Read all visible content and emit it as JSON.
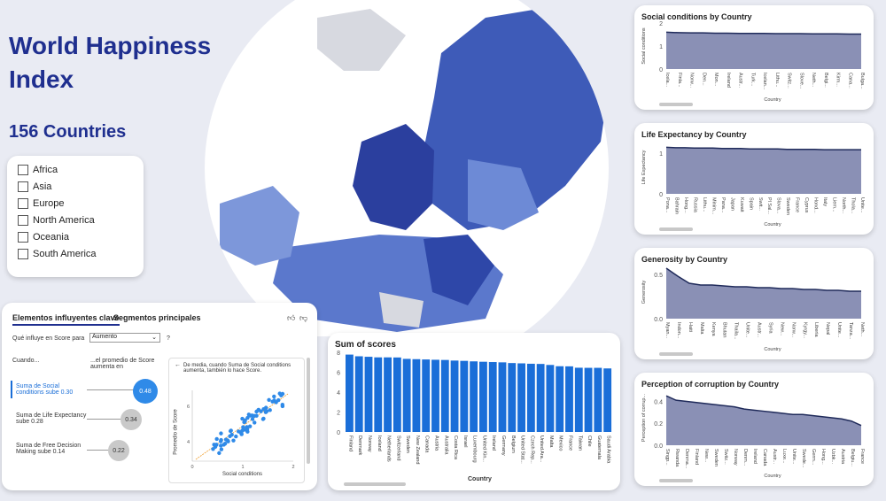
{
  "title": "World Happiness Index",
  "countries_label": "156 Countries",
  "slicer": {
    "items": [
      "Africa",
      "Asia",
      "Europe",
      "North America",
      "Oceania",
      "South America"
    ]
  },
  "colors": {
    "accent": "#1f2f8f",
    "bar": "#1a6ed8",
    "area_fill": "#8a90b5",
    "area_line": "#1f2a5a",
    "map_ocean": "#ffffff",
    "map_land": "#3e5bb8"
  },
  "globe_icon": "globe-map-icon",
  "mini_charts": [
    {
      "title": "Social conditions by Country",
      "xlabel": "Country",
      "ylabel": "Social conditions",
      "ticks": [
        "2",
        "1",
        "0"
      ],
      "categories": [
        "Icela...",
        "Finla...",
        "Norw...",
        "Den...",
        "Mon...",
        "Ireland",
        "Austr...",
        "Turk...",
        "Icelan...",
        "Lithu...",
        "Switz...",
        "Slove...",
        "Neth...",
        "Belgi...",
        "Kirm...",
        "Cana...",
        "Bulga..."
      ],
      "values": [
        1.6,
        1.58,
        1.57,
        1.57,
        1.56,
        1.56,
        1.55,
        1.55,
        1.55,
        1.54,
        1.54,
        1.54,
        1.53,
        1.53,
        1.53,
        1.52,
        1.52
      ],
      "ylim": [
        0,
        2
      ]
    },
    {
      "title": "Life Expectancy by Country",
      "xlabel": "Country",
      "ylabel": "Life Expectancy",
      "ticks": [
        "1",
        "0"
      ],
      "categories": [
        "Pona...",
        "Bahrain",
        "Hong...",
        "Russia",
        "Lithu...",
        "Minim...",
        "Pana...",
        "Japan",
        "Kuwait",
        "Spain",
        "Swit...",
        "Pl Sal...",
        "Slova...",
        "Sweden",
        "France",
        "Cyprus",
        "Hond...",
        "Italy",
        "Liem...",
        "North...",
        "Thola...",
        "Unite..."
      ],
      "values": [
        1.14,
        1.13,
        1.13,
        1.12,
        1.12,
        1.12,
        1.11,
        1.11,
        1.11,
        1.1,
        1.1,
        1.1,
        1.1,
        1.09,
        1.09,
        1.09,
        1.09,
        1.08,
        1.08,
        1.08,
        1.08,
        1.08
      ],
      "ylim": [
        0,
        1.3
      ]
    },
    {
      "title": "Generosity by Country",
      "xlabel": "Country",
      "ylabel": "Generosity",
      "ticks": [
        "0.5",
        "0.0"
      ],
      "categories": [
        "Myan...",
        "Indon...",
        "Haiti",
        "Malta",
        "Kenya",
        "Bhutan",
        "Thaila...",
        "Unite...",
        "Austr...",
        "Syria",
        "New...",
        "Norw...",
        "Kyrgy...",
        "Liberia",
        "Nepal",
        "Unite...",
        "Tanza...",
        "Neth..."
      ],
      "values": [
        0.57,
        0.48,
        0.4,
        0.38,
        0.38,
        0.37,
        0.36,
        0.36,
        0.35,
        0.35,
        0.34,
        0.34,
        0.33,
        0.33,
        0.32,
        0.32,
        0.31,
        0.31
      ],
      "ylim": [
        0,
        0.6
      ]
    },
    {
      "title": "Perception of corruption by Country",
      "xlabel": "Country",
      "ylabel": "Perception of corrup...",
      "ticks": [
        "0.4",
        "0.2",
        "0.0"
      ],
      "categories": [
        "Singp...",
        "Rwanda",
        "Denma...",
        "Finland",
        "New...",
        "Sweden",
        "Switz...",
        "Norway",
        "Denm...",
        "Ireland",
        "Canada",
        "Austr...",
        "Luxe...",
        "Unite...",
        "Swede...",
        "Germ...",
        "Hong...",
        "Uzbk...",
        "Austria",
        "Belgiu...",
        "France"
      ],
      "values": [
        0.45,
        0.41,
        0.4,
        0.39,
        0.38,
        0.37,
        0.36,
        0.35,
        0.33,
        0.32,
        0.31,
        0.3,
        0.29,
        0.28,
        0.28,
        0.27,
        0.26,
        0.25,
        0.24,
        0.22,
        0.18
      ],
      "ylim": [
        0,
        0.5
      ]
    }
  ],
  "chart_data": {
    "type": "bar",
    "title": "Sum of scores",
    "xlabel": "Country",
    "ylabel": "",
    "ylim": [
      0,
      8
    ],
    "ticks": [
      "8",
      "6",
      "4",
      "2",
      "0"
    ],
    "categories": [
      "Finland",
      "Denmark",
      "Norway",
      "Iceland",
      "Netherlands",
      "Switzerland",
      "Sweden",
      "New Zealand",
      "Canada",
      "Austria",
      "Australia",
      "Costa Rica",
      "Israel",
      "Luxembourg",
      "United Kin...",
      "Ireland",
      "Germany",
      "Belgium",
      "United Stat...",
      "Czech Rep...",
      "United Ara...",
      "Malta",
      "Mexico",
      "France",
      "Taiwan",
      "Chile",
      "Guatemala",
      "Saudi Arabia"
    ],
    "values": [
      7.77,
      7.6,
      7.55,
      7.49,
      7.49,
      7.48,
      7.34,
      7.31,
      7.28,
      7.25,
      7.23,
      7.17,
      7.14,
      7.09,
      7.05,
      7.02,
      6.99,
      6.92,
      6.89,
      6.85,
      6.83,
      6.73,
      6.6,
      6.59,
      6.45,
      6.44,
      6.44,
      6.38
    ]
  },
  "influencers": {
    "tab_key": "Elementos influyentes clave",
    "tab_segments": "Segmentos principales",
    "question": "Qué influye en Score para",
    "select_value": "Aumento",
    "help": "?",
    "col_when": "Cuando...",
    "col_avg": "...el promedio de Score aumenta en",
    "rows": [
      {
        "label": "Suma de Social conditions sube 0.30",
        "value": "0.48"
      },
      {
        "label": "Suma de Life Expectancy sube 0.28",
        "value": "0.34"
      },
      {
        "label": "Suma de Free Decision Making sube 0.14",
        "value": "0.22"
      }
    ],
    "note": "De media, cuando Suma de Social conditions aumenta, también lo hace Score.",
    "scatter_xlabel": "Social conditions",
    "scatter_ylabel": "Promedio de Score",
    "scatter_xticks": [
      "0",
      "1",
      "2"
    ],
    "scatter_yticks": [
      "6",
      "4"
    ]
  }
}
